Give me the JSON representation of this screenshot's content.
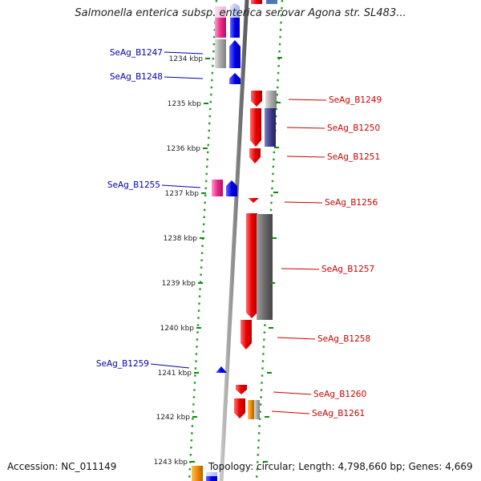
{
  "title": "Salmonella enterica subsp. enterica serovar Agona str. SL483...",
  "footer": {
    "accession": "Accession: NC_011149",
    "topology": "Topology: circular; Length: 4,798,660 bp; Genes: 4,669"
  },
  "colors": {
    "forward_label": "#0000aa",
    "reverse_label": "#cc0000",
    "forward_gene": "#0000ee",
    "reverse_gene": "#ee0000",
    "dotted_track": "#2a9a2a",
    "backbone": "#888888",
    "tick": "#118811"
  },
  "ticks": [
    {
      "label": "1234 kbp"
    },
    {
      "label": "1235 kbp"
    },
    {
      "label": "1236 kbp"
    },
    {
      "label": "1237 kbp"
    },
    {
      "label": "1238 kbp"
    },
    {
      "label": "1239 kbp"
    },
    {
      "label": "1240 kbp"
    },
    {
      "label": "1241 kbp"
    },
    {
      "label": "1242 kbp"
    },
    {
      "label": "1243 kbp"
    }
  ],
  "forward_genes": [
    {
      "name": "SeAg_B1247"
    },
    {
      "name": "SeAg_B1248"
    },
    {
      "name": "SeAg_B1255"
    },
    {
      "name": "SeAg_B1259"
    }
  ],
  "reverse_genes": [
    {
      "name": "SeAg_B1249"
    },
    {
      "name": "SeAg_B1250"
    },
    {
      "name": "SeAg_B1251"
    },
    {
      "name": "SeAg_B1256"
    },
    {
      "name": "SeAg_B1257"
    },
    {
      "name": "SeAg_B1258"
    },
    {
      "name": "SeAg_B1260"
    },
    {
      "name": "SeAg_B1261"
    }
  ]
}
